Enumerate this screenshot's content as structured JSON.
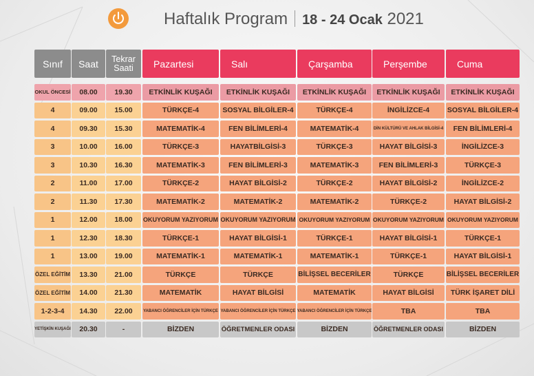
{
  "header": {
    "title": "Haftalık Program",
    "date_range": "18 - 24 Ocak",
    "year": "2021"
  },
  "table": {
    "columns": [
      "Sınıf",
      "Saat",
      "Tekrar Saati",
      "Pazartesi",
      "Salı",
      "Çarşamba",
      "Perşembe",
      "Cuma"
    ],
    "rows": [
      [
        "OKUL ÖNCESİ",
        "08.00",
        "19.30",
        "ETKİNLİK KUŞAĞI",
        "ETKİNLİK KUŞAĞI",
        "ETKİNLİK KUŞAĞI",
        "ETKİNLİK KUŞAĞI",
        "ETKİNLİK KUŞAĞI"
      ],
      [
        "4",
        "09.00",
        "15.00",
        "TÜRKÇE-4",
        "SOSYAL BİLGİLER-4",
        "TÜRKÇE-4",
        "İNGİLİZCE-4",
        "SOSYAL BİLGİLER-4"
      ],
      [
        "4",
        "09.30",
        "15.30",
        "MATEMATİK-4",
        "FEN BİLİMLERİ-4",
        "MATEMATİK-4",
        "DİN KÜLTÜRÜ VE AHLAK BİLGİSİ-4",
        "FEN BİLİMLERİ-4"
      ],
      [
        "3",
        "10.00",
        "16.00",
        "TÜRKÇE-3",
        "HAYATBİLGİSİ-3",
        "TÜRKÇE-3",
        "HAYAT BİLGİSİ-3",
        "İNGİLİZCE-3"
      ],
      [
        "3",
        "10.30",
        "16.30",
        "MATEMATİK-3",
        "FEN BİLİMLERİ-3",
        "MATEMATİK-3",
        "FEN BİLİMLERİ-3",
        "TÜRKÇE-3"
      ],
      [
        "2",
        "11.00",
        "17.00",
        "TÜRKÇE-2",
        "HAYAT BİLGİSİ-2",
        "TÜRKÇE-2",
        "HAYAT BİLGİSİ-2",
        "İNGİLİZCE-2"
      ],
      [
        "2",
        "11.30",
        "17.30",
        "MATEMATİK-2",
        "MATEMATİK-2",
        "MATEMATİK-2",
        "TÜRKÇE-2",
        "HAYAT BİLGİSİ-2"
      ],
      [
        "1",
        "12.00",
        "18.00",
        "OKUYORUM YAZIYORUM",
        "OKUYORUM YAZIYORUM",
        "OKUYORUM YAZIYORUM",
        "OKUYORUM YAZIYORUM",
        "OKUYORUM YAZIYORUM"
      ],
      [
        "1",
        "12.30",
        "18.30",
        "TÜRKÇE-1",
        "HAYAT BİLGİSİ-1",
        "TÜRKÇE-1",
        "HAYAT BİLGİSİ-1",
        "TÜRKÇE-1"
      ],
      [
        "1",
        "13.00",
        "19.00",
        "MATEMATİK-1",
        "MATEMATİK-1",
        "MATEMATİK-1",
        "TÜRKÇE-1",
        "HAYAT BİLGİSİ-1"
      ],
      [
        "ÖZEL EĞİTİM",
        "13.30",
        "21.00",
        "TÜRKÇE",
        "TÜRKÇE",
        "BİLİŞSEL BECERİLER",
        "TÜRKÇE",
        "BİLİŞSEL BECERİLER"
      ],
      [
        "ÖZEL EĞİTİM",
        "14.00",
        "21.30",
        "MATEMATİK",
        "HAYAT BİLGİSİ",
        "MATEMATİK",
        "HAYAT BİLGİSİ",
        "TÜRK İŞARET DİLİ"
      ],
      [
        "1-2-3-4",
        "14.30",
        "22.00",
        "YABANCI ÖĞRENCİLER İÇİN TÜRKÇE",
        "YABANCI ÖĞRENCİLER İÇİN TÜRKÇE",
        "YABANCI ÖĞRENCİLER İÇİN TÜRKÇE",
        "TBA",
        "TBA"
      ],
      [
        "YETİŞKİN KUŞAĞI",
        "20.30",
        "-",
        "BİZDEN",
        "ÖĞRETMENLER ODASI",
        "BİZDEN",
        "ÖĞRETMENLER ODASI",
        "BİZDEN"
      ]
    ]
  }
}
